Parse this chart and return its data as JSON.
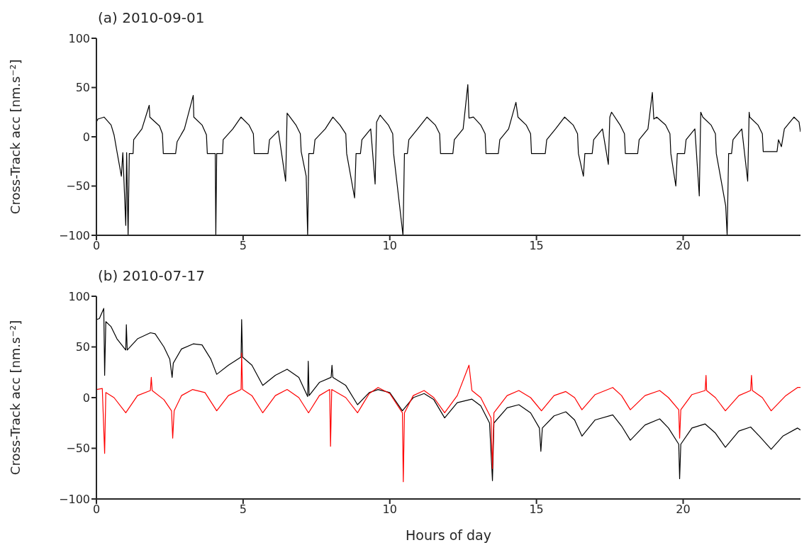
{
  "chart_data": [
    {
      "type": "line",
      "title": "(a) 2010-09-01",
      "ylabel": "Cross-Track acc [nm.s⁻²]",
      "xlim": [
        0,
        24
      ],
      "xticks": [
        0,
        5,
        10,
        15,
        20
      ],
      "ylim": [
        -100,
        100
      ],
      "yticks": [
        -100,
        -50,
        0,
        50,
        100
      ],
      "series": [
        {
          "color": "#000000",
          "x": [
            0,
            0.05,
            0.26,
            0.5,
            0.6,
            0.7,
            0.85,
            0.9,
            1.0,
            1.03,
            1.08,
            1.12,
            1.25,
            1.27,
            1.55,
            1.8,
            1.82,
            2.15,
            2.25,
            2.28,
            2.7,
            2.75,
            3.0,
            3.3,
            3.32,
            3.6,
            3.75,
            3.78,
            4.05,
            4.07,
            4.1,
            4.3,
            4.32,
            4.65,
            4.93,
            5.2,
            5.35,
            5.38,
            5.85,
            5.9,
            6.2,
            6.45,
            6.5,
            6.8,
            6.95,
            6.98,
            7.15,
            7.2,
            7.24,
            7.4,
            7.45,
            7.8,
            8.06,
            8.3,
            8.5,
            8.53,
            8.8,
            8.85,
            9.0,
            9.05,
            9.35,
            9.5,
            9.55,
            9.67,
            9.95,
            10.1,
            10.13,
            10.45,
            10.5,
            10.6,
            10.65,
            10.95,
            11.27,
            11.55,
            11.7,
            11.73,
            12.15,
            12.2,
            12.5,
            12.66,
            12.7,
            12.85,
            13.1,
            13.25,
            13.28,
            13.7,
            13.75,
            14.05,
            14.3,
            14.37,
            14.65,
            14.8,
            14.83,
            15.3,
            15.35,
            15.65,
            15.96,
            16.25,
            16.4,
            16.43,
            16.6,
            16.65,
            16.9,
            16.95,
            17.25,
            17.45,
            17.5,
            17.56,
            17.85,
            18.0,
            18.03,
            18.45,
            18.5,
            18.8,
            18.95,
            19.0,
            19.1,
            19.4,
            19.55,
            19.58,
            19.75,
            19.8,
            20.05,
            20.1,
            20.4,
            20.55,
            20.6,
            20.67,
            20.95,
            21.1,
            21.13,
            21.45,
            21.5,
            21.55,
            21.65,
            21.7,
            22.0,
            22.2,
            22.25,
            22.27,
            22.55,
            22.7,
            22.73,
            23.2,
            23.25,
            23.35,
            23.45,
            23.78,
            23.95,
            24
          ],
          "values": [
            15,
            18,
            20,
            12,
            2,
            -15,
            -40,
            -16,
            -90,
            -16,
            -100,
            -17,
            -17,
            -3,
            8,
            32,
            20,
            11,
            3,
            -17,
            -17,
            -5,
            8,
            42,
            20,
            12,
            2,
            -17,
            -17,
            -100,
            -17,
            -17,
            -3,
            8,
            20,
            12,
            3,
            -17,
            -17,
            -3,
            6,
            -45,
            24,
            12,
            3,
            -15,
            -40,
            -100,
            -17,
            -17,
            -3,
            8,
            20,
            12,
            3,
            -17,
            -62,
            -17,
            -17,
            -3,
            8,
            -48,
            15,
            22,
            12,
            3,
            -17,
            -100,
            -17,
            -17,
            -3,
            8,
            20,
            12,
            3,
            -17,
            -17,
            -3,
            8,
            53,
            19,
            20,
            12,
            3,
            -17,
            -17,
            -3,
            8,
            35,
            20,
            12,
            3,
            -17,
            -17,
            -3,
            8,
            20,
            12,
            3,
            -17,
            -40,
            -17,
            -17,
            -3,
            8,
            -28,
            20,
            25,
            12,
            3,
            -17,
            -17,
            -3,
            8,
            45,
            18,
            20,
            12,
            3,
            -17,
            -50,
            -17,
            -17,
            -3,
            8,
            -60,
            25,
            20,
            12,
            3,
            -17,
            -70,
            -100,
            -17,
            -17,
            -3,
            8,
            -45,
            25,
            20,
            12,
            3,
            -15,
            -15,
            -3,
            -10,
            8,
            20,
            15,
            5
          ]
        }
      ]
    },
    {
      "type": "line",
      "title": "(b) 2010-07-17",
      "xlabel": "Hours of day",
      "ylabel": "Cross-Track acc [nm.s⁻²]",
      "xlim": [
        0,
        24
      ],
      "xticks": [
        0,
        5,
        10,
        15,
        20
      ],
      "ylim": [
        -100,
        100
      ],
      "yticks": [
        -100,
        -50,
        0,
        50,
        100
      ],
      "series": [
        {
          "color": "#000000",
          "x": [
            0,
            0.1,
            0.25,
            0.28,
            0.32,
            0.5,
            0.7,
            1.0,
            1.02,
            1.05,
            1.4,
            1.84,
            2.0,
            2.3,
            2.5,
            2.58,
            2.62,
            2.9,
            3.3,
            3.6,
            3.9,
            4.1,
            4.5,
            4.93,
            4.95,
            4.98,
            5.3,
            5.67,
            6.1,
            6.5,
            6.9,
            7.2,
            7.22,
            7.25,
            7.6,
            8.0,
            8.03,
            8.06,
            8.5,
            8.9,
            9.3,
            9.6,
            10.0,
            10.43,
            10.8,
            11.17,
            11.5,
            11.87,
            12.3,
            12.8,
            13.1,
            13.4,
            13.5,
            13.55,
            14.0,
            14.4,
            14.8,
            15.1,
            15.15,
            15.2,
            15.6,
            16.0,
            16.3,
            16.55,
            17.0,
            17.6,
            17.9,
            18.2,
            18.7,
            19.2,
            19.5,
            19.85,
            19.88,
            19.92,
            20.3,
            20.75,
            21.1,
            21.44,
            21.9,
            22.3,
            22.6,
            23.0,
            23.4,
            23.9,
            24
          ],
          "values": [
            77,
            78,
            88,
            22,
            75,
            70,
            58,
            47,
            72,
            47,
            58,
            64,
            63,
            50,
            38,
            20,
            34,
            48,
            53,
            52,
            38,
            23,
            32,
            40,
            77,
            40,
            32,
            12,
            22,
            28,
            20,
            1,
            36,
            2,
            15,
            20,
            32,
            20,
            12,
            -7,
            5,
            8,
            5,
            -13,
            0,
            4,
            -2,
            -20,
            -5,
            -1.5,
            -8,
            -25,
            -82,
            -25,
            -10,
            -7,
            -15,
            -30,
            -53,
            -30,
            -18,
            -14,
            -22,
            -38,
            -22,
            -17,
            -28,
            -42,
            -27,
            -21,
            -30,
            -46,
            -80,
            -46,
            -30,
            -26,
            -35,
            -49,
            -33,
            -29,
            -38,
            -51,
            -38,
            -30,
            -32
          ]
        },
        {
          "color": "#ff0000",
          "x": [
            0,
            0.2,
            0.28,
            0.32,
            0.6,
            1.0,
            1.4,
            1.84,
            1.87,
            1.9,
            2.3,
            2.56,
            2.6,
            2.65,
            2.9,
            3.28,
            3.7,
            4.1,
            4.5,
            4.93,
            4.95,
            4.98,
            5.3,
            5.67,
            6.1,
            6.5,
            6.9,
            7.23,
            7.6,
            7.95,
            7.98,
            8.02,
            8.5,
            8.9,
            9.3,
            9.6,
            10.0,
            10.43,
            10.46,
            10.5,
            10.8,
            11.17,
            11.5,
            11.87,
            12.3,
            12.7,
            12.8,
            13.1,
            13.45,
            13.5,
            13.55,
            14.0,
            14.4,
            14.8,
            15.17,
            15.6,
            16.0,
            16.3,
            16.55,
            17.0,
            17.6,
            17.9,
            18.2,
            18.7,
            19.2,
            19.5,
            19.85,
            19.88,
            19.92,
            20.3,
            20.75,
            20.78,
            20.8,
            21.1,
            21.44,
            21.9,
            22.3,
            22.33,
            22.36,
            22.7,
            23.0,
            23.5,
            23.9,
            24
          ],
          "values": [
            8,
            9,
            -55,
            5,
            0,
            -15,
            2,
            7,
            20,
            7,
            -2,
            -13,
            -40,
            -13,
            2,
            8,
            5,
            -13,
            2,
            8,
            44,
            8,
            2,
            -15,
            2,
            8,
            0,
            -15,
            2,
            8,
            -48,
            8,
            0,
            -15,
            4,
            10,
            4,
            -15,
            -83,
            -15,
            2,
            7,
            0,
            -15,
            2,
            32,
            7,
            0,
            -20,
            -70,
            -15,
            2,
            7,
            0,
            -13,
            2,
            6,
            0,
            -12,
            3,
            10,
            2,
            -12,
            2,
            7,
            0,
            -12,
            -40,
            -12,
            3,
            7,
            22,
            7,
            0,
            -13,
            2,
            7,
            22,
            7,
            0,
            -13,
            2,
            10,
            10
          ]
        }
      ]
    }
  ]
}
